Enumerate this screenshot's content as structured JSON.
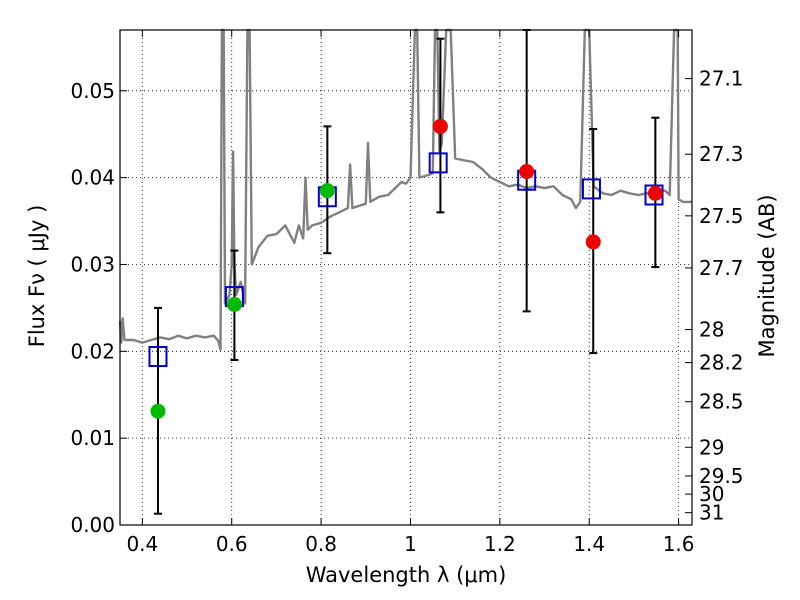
{
  "chart_data": {
    "type": "scatter",
    "xlabel": "Wavelength  λ (μm)",
    "ylabel": "Flux  Fν  ( μJy )",
    "ylabel2": "Magnitude (AB)",
    "xlim": [
      0.35,
      1.63
    ],
    "ylim": [
      0.0,
      0.057
    ],
    "grid": true,
    "x_ticks": [
      0.4,
      0.6,
      0.8,
      1.0,
      1.2,
      1.4,
      1.6
    ],
    "x_tick_labels": [
      "0.4",
      "0.6",
      "0.8",
      "1",
      "1.2",
      "1.4",
      "1.6"
    ],
    "y_ticks": [
      0.0,
      0.01,
      0.02,
      0.03,
      0.04,
      0.05
    ],
    "y_tick_labels": [
      "0.00",
      "0.01",
      "0.02",
      "0.03",
      "0.04",
      "0.05"
    ],
    "mag_ticks": [
      {
        "label": "27.1",
        "flux": 0.0514
      },
      {
        "label": "27.3",
        "flux": 0.0427
      },
      {
        "label": "27.5",
        "flux": 0.0356
      },
      {
        "label": "27.7",
        "flux": 0.0296
      },
      {
        "label": "28",
        "flux": 0.0225
      },
      {
        "label": "28.2",
        "flux": 0.0187
      },
      {
        "label": "28.5",
        "flux": 0.0142
      },
      {
        "label": "29",
        "flux": 0.00895
      },
      {
        "label": "29.5",
        "flux": 0.00565
      },
      {
        "label": "30",
        "flux": 0.00356
      },
      {
        "label": "31",
        "flux": 0.00142
      }
    ],
    "series": [
      {
        "kind": "template-spectrum",
        "color": "#808080",
        "points": [
          [
            0.35,
            0.0235
          ],
          [
            0.353,
            0.021
          ],
          [
            0.356,
            0.0238
          ],
          [
            0.36,
            0.0213
          ],
          [
            0.38,
            0.0213
          ],
          [
            0.4,
            0.021
          ],
          [
            0.42,
            0.0213
          ],
          [
            0.44,
            0.0216
          ],
          [
            0.46,
            0.0214
          ],
          [
            0.48,
            0.0218
          ],
          [
            0.5,
            0.0215
          ],
          [
            0.52,
            0.0218
          ],
          [
            0.54,
            0.0216
          ],
          [
            0.56,
            0.0218
          ],
          [
            0.57,
            0.0212
          ],
          [
            0.575,
            0.0202
          ],
          [
            0.578,
            0.057
          ],
          [
            0.582,
            0.057
          ],
          [
            0.585,
            0.0255
          ],
          [
            0.595,
            0.0265
          ],
          [
            0.6,
            0.03
          ],
          [
            0.603,
            0.043
          ],
          [
            0.606,
            0.03
          ],
          [
            0.61,
            0.0265
          ],
          [
            0.62,
            0.028
          ],
          [
            0.63,
            0.0255
          ],
          [
            0.635,
            0.057
          ],
          [
            0.64,
            0.057
          ],
          [
            0.645,
            0.03
          ],
          [
            0.66,
            0.032
          ],
          [
            0.68,
            0.0333
          ],
          [
            0.7,
            0.0335
          ],
          [
            0.72,
            0.0345
          ],
          [
            0.74,
            0.0325
          ],
          [
            0.75,
            0.0345
          ],
          [
            0.76,
            0.033
          ],
          [
            0.765,
            0.04
          ],
          [
            0.77,
            0.034
          ],
          [
            0.78,
            0.0345
          ],
          [
            0.8,
            0.0348
          ],
          [
            0.82,
            0.0355
          ],
          [
            0.84,
            0.036
          ],
          [
            0.86,
            0.0365
          ],
          [
            0.865,
            0.0415
          ],
          [
            0.87,
            0.0365
          ],
          [
            0.9,
            0.037
          ],
          [
            0.905,
            0.044
          ],
          [
            0.91,
            0.0372
          ],
          [
            0.93,
            0.0378
          ],
          [
            0.95,
            0.038
          ],
          [
            0.97,
            0.039
          ],
          [
            0.98,
            0.0395
          ],
          [
            0.99,
            0.0393
          ],
          [
            1.0,
            0.04
          ],
          [
            1.01,
            0.057
          ],
          [
            1.015,
            0.057
          ],
          [
            1.02,
            0.04
          ],
          [
            1.04,
            0.0403
          ],
          [
            1.05,
            0.0405
          ],
          [
            1.055,
            0.057
          ],
          [
            1.06,
            0.057
          ],
          [
            1.065,
            0.043
          ],
          [
            1.07,
            0.044
          ],
          [
            1.08,
            0.057
          ],
          [
            1.09,
            0.057
          ],
          [
            1.1,
            0.0422
          ],
          [
            1.12,
            0.042
          ],
          [
            1.14,
            0.0418
          ],
          [
            1.16,
            0.041
          ],
          [
            1.18,
            0.04
          ],
          [
            1.2,
            0.0395
          ],
          [
            1.22,
            0.039
          ],
          [
            1.24,
            0.0392
          ],
          [
            1.26,
            0.0388
          ],
          [
            1.28,
            0.039
          ],
          [
            1.3,
            0.0388
          ],
          [
            1.32,
            0.039
          ],
          [
            1.34,
            0.038
          ],
          [
            1.36,
            0.0375
          ],
          [
            1.37,
            0.0365
          ],
          [
            1.38,
            0.0372
          ],
          [
            1.39,
            0.057
          ],
          [
            1.4,
            0.057
          ],
          [
            1.41,
            0.039
          ],
          [
            1.43,
            0.0382
          ],
          [
            1.45,
            0.038
          ],
          [
            1.47,
            0.0385
          ],
          [
            1.49,
            0.0382
          ],
          [
            1.51,
            0.038
          ],
          [
            1.53,
            0.0382
          ],
          [
            1.55,
            0.0385
          ],
          [
            1.57,
            0.0385
          ],
          [
            1.58,
            0.038
          ],
          [
            1.59,
            0.057
          ],
          [
            1.598,
            0.057
          ],
          [
            1.6,
            0.0375
          ],
          [
            1.61,
            0.0372
          ],
          [
            1.63,
            0.0372
          ]
        ]
      },
      {
        "kind": "model-photometry",
        "marker": "open-square",
        "color": "#0000cc",
        "x": [
          0.435,
          0.606,
          0.814,
          1.062,
          1.26,
          1.405,
          1.545
        ],
        "y": [
          0.0194,
          0.0263,
          0.0378,
          0.0417,
          0.0397,
          0.0387,
          0.038
        ]
      },
      {
        "kind": "observed",
        "marker": "circle",
        "x": [
          0.435,
          0.606,
          0.814,
          1.067,
          1.26,
          1.409,
          1.548
        ],
        "y": [
          0.0131,
          0.0254,
          0.0385,
          0.0459,
          0.0407,
          0.0326,
          0.0382
        ],
        "yerr_low": [
          0.0013,
          0.019,
          0.0313,
          0.036,
          0.0246,
          0.0198,
          0.0297
        ],
        "yerr_high": [
          0.025,
          0.0316,
          0.0459,
          0.056,
          0.057,
          0.0456,
          0.0469
        ],
        "colors": [
          "#00bb00",
          "#00bb00",
          "#00bb00",
          "#ee0000",
          "#ee0000",
          "#ee0000",
          "#ee0000"
        ]
      }
    ]
  }
}
